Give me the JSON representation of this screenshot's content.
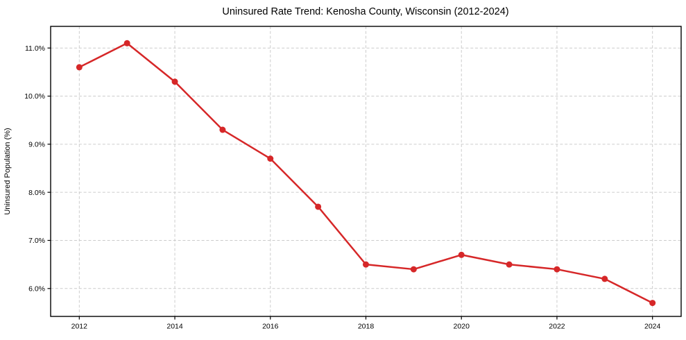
{
  "chart_data": {
    "type": "line",
    "title": "Uninsured Rate Trend: Kenosha County, Wisconsin (2012-2024)",
    "xlabel": "",
    "ylabel": "Uninsured Population (%)",
    "x": [
      2012,
      2013,
      2014,
      2015,
      2016,
      2017,
      2018,
      2019,
      2020,
      2021,
      2022,
      2023,
      2024
    ],
    "values": [
      10.6,
      11.1,
      10.3,
      9.3,
      8.7,
      7.7,
      6.5,
      6.4,
      6.7,
      6.5,
      6.4,
      6.2,
      5.7
    ],
    "x_ticks": [
      2012,
      2014,
      2016,
      2018,
      2020,
      2022,
      2024
    ],
    "x_tick_labels": [
      "2012",
      "2014",
      "2016",
      "2018",
      "2020",
      "2022",
      "2024"
    ],
    "y_ticks": [
      6,
      7,
      8,
      9,
      10,
      11
    ],
    "y_tick_labels": [
      "6.0%",
      "7.0%",
      "8.0%",
      "9.0%",
      "10.0%",
      "11.0%"
    ],
    "xlim": [
      2011.4,
      2024.6
    ],
    "ylim": [
      5.42,
      11.45
    ],
    "grid": true,
    "legend": "none",
    "line_color": "#d62728",
    "marker": "circle",
    "grid_color": "#cccccc",
    "spine_color": "#000000",
    "background_color": "#ffffff"
  }
}
